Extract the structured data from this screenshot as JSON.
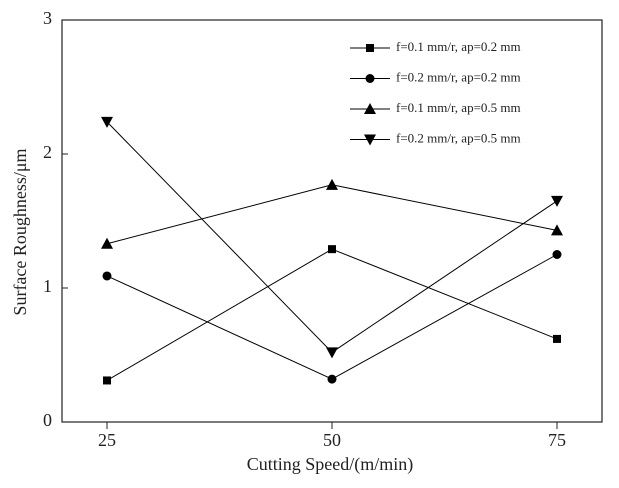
{
  "chart_data": {
    "type": "line",
    "xlabel": "Cutting Speed/(m/min)",
    "ylabel": "Surface Roughness/μm",
    "x": [
      25,
      50,
      75
    ],
    "xlim": [
      20,
      80
    ],
    "xticks": [
      25,
      50,
      75
    ],
    "ylim": [
      0,
      3
    ],
    "yticks": [
      0,
      1,
      2,
      3
    ],
    "series": [
      {
        "name": "f=0.1 mm/r, ap=0.2 mm",
        "color": "#000000",
        "marker": "square",
        "values": [
          0.31,
          1.29,
          0.62
        ]
      },
      {
        "name": "f=0.2 mm/r, ap=0.2 mm",
        "color": "#000000",
        "marker": "circle",
        "values": [
          1.09,
          0.32,
          1.25
        ]
      },
      {
        "name": "f=0.1 mm/r, ap=0.5 mm",
        "color": "#000000",
        "marker": "triangle-up",
        "values": [
          1.33,
          1.77,
          1.43
        ]
      },
      {
        "name": "f=0.2 mm/r, ap=0.5 mm",
        "color": "#000000",
        "marker": "triangle-down",
        "values": [
          2.24,
          0.52,
          1.65
        ]
      }
    ]
  }
}
